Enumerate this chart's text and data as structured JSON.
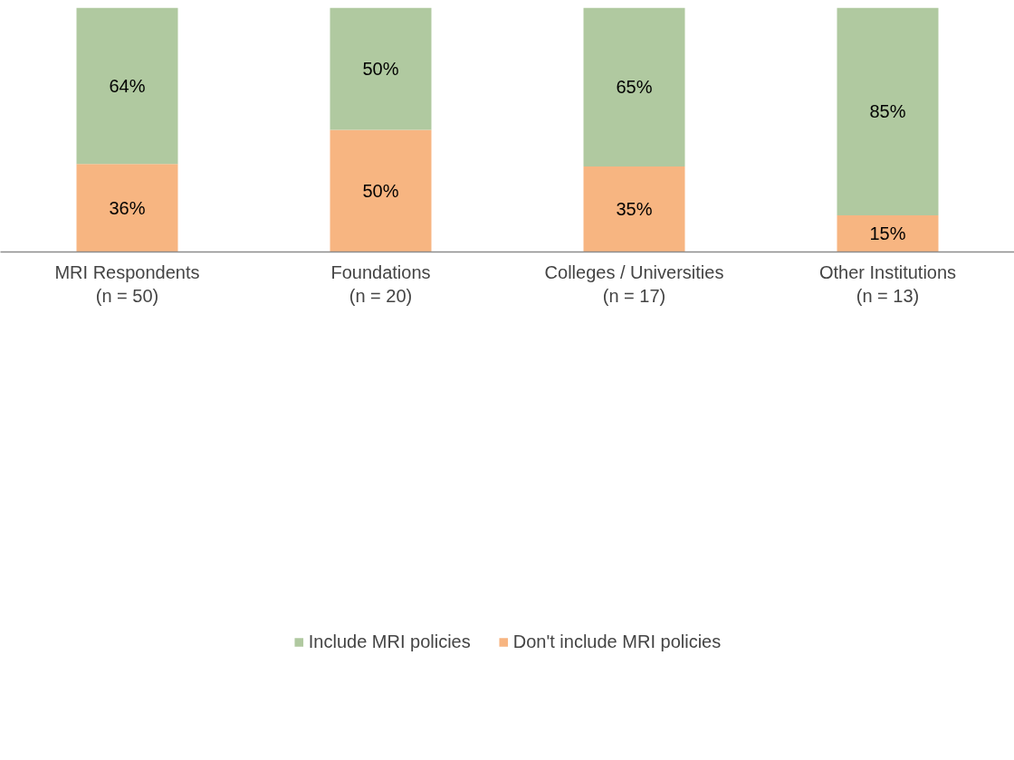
{
  "chart_data": {
    "type": "bar",
    "stacked": true,
    "categories": [
      "MRI Respondents\n(n = 50)",
      "Foundations\n(n = 20)",
      "Colleges / Universities\n(n = 17)",
      "Other Institutions\n(n = 13)"
    ],
    "series": [
      {
        "name": "Don't include MRI policies",
        "color": "#f7b581",
        "values": [
          36,
          50,
          35,
          15
        ],
        "value_labels": [
          "36%",
          "50%",
          "35%",
          "15%"
        ]
      },
      {
        "name": "Include MRI policies",
        "color": "#b0c9a0",
        "values": [
          64,
          50,
          65,
          85
        ],
        "value_labels": [
          "64%",
          "50%",
          "65%",
          "85%"
        ]
      }
    ],
    "ylim": [
      0,
      100
    ],
    "tick_labels": "x",
    "grid": false,
    "legend": "bottom"
  }
}
